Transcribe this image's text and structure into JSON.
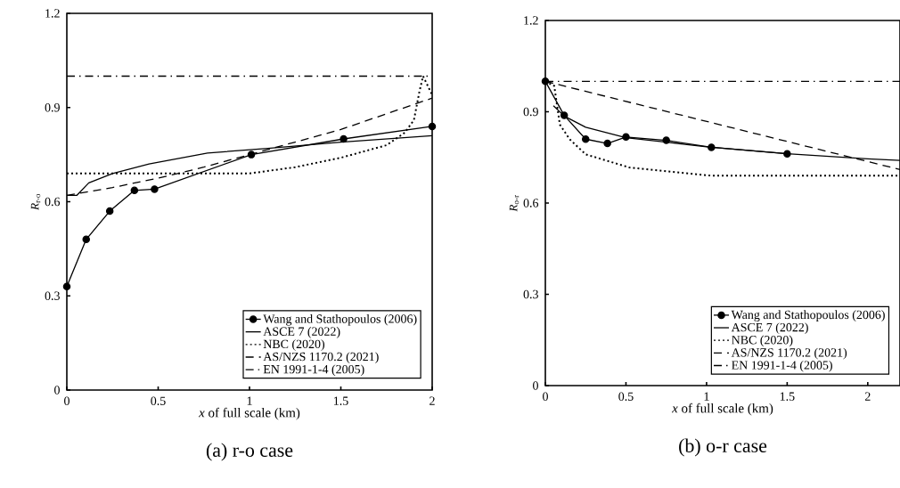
{
  "chart_data": [
    {
      "type": "line",
      "title": "(a) r-o case",
      "xlabel": "*x* of full scale (km)",
      "ylabel": "*R*$_{r-o}$",
      "xlim": [
        0,
        2
      ],
      "ylim": [
        0,
        1.2
      ],
      "xticks": [
        0,
        0.5,
        1,
        1.5,
        2
      ],
      "yticks": [
        0,
        0.3,
        0.6,
        0.9,
        1.2
      ],
      "grid": false,
      "legend": "bottom right",
      "series": [
        {
          "name": "Wang and Stathopoulos (2006)",
          "color": "#000000",
          "marker": "circle",
          "line_style": "solid",
          "x": [
            0,
            0.106,
            0.235,
            0.37,
            0.48,
            1.01,
            1.515,
            2.0
          ],
          "values": [
            0.33,
            0.48,
            0.57,
            0.636,
            0.64,
            0.75,
            0.8,
            0.84
          ]
        },
        {
          "name": "ASCE 7 (2022)",
          "color": "#000000",
          "marker": "none",
          "line_style": "solid",
          "x": [
            0,
            0.054,
            0.12,
            0.25,
            0.45,
            0.77,
            1.1,
            1.5,
            2.0
          ],
          "values": [
            0.62,
            0.62,
            0.66,
            0.69,
            0.72,
            0.755,
            0.77,
            0.79,
            0.81
          ]
        },
        {
          "name": "NBC (2020)",
          "color": "#000000",
          "marker": "none",
          "line_style": "dotted",
          "x": [
            0,
            1.0,
            1.25,
            1.5,
            1.75,
            1.85,
            1.9,
            1.93,
            1.95,
            2.0
          ],
          "values": [
            0.69,
            0.69,
            0.71,
            0.74,
            0.78,
            0.82,
            0.86,
            0.95,
            1.0,
            0.94
          ]
        },
        {
          "name": "AS/NZS 1170.2  (2021)",
          "color": "#000000",
          "marker": "none",
          "line_style": "dashed",
          "x": [
            0,
            0.25,
            0.5,
            0.75,
            1.0,
            1.25,
            1.5,
            1.75,
            2.0
          ],
          "values": [
            0.62,
            0.645,
            0.675,
            0.71,
            0.75,
            0.79,
            0.83,
            0.88,
            0.93
          ]
        },
        {
          "name": "EN 1991-1-4 (2005)",
          "color": "#000000",
          "marker": "none",
          "line_style": "dashdot",
          "x": [
            0,
            2.0
          ],
          "values": [
            1.0,
            1.0
          ]
        }
      ]
    },
    {
      "type": "line",
      "title": "(b) o-r case",
      "xlabel": "*x* of full scale (km)",
      "ylabel": "*R*$_{o-r}$",
      "xlim": [
        0,
        2.2
      ],
      "ylim": [
        0,
        1.2
      ],
      "xticks": [
        0,
        0.5,
        1,
        1.5,
        2
      ],
      "yticks": [
        0,
        0.3,
        0.6,
        0.9,
        1.2
      ],
      "grid": false,
      "legend": "bottom right",
      "series": [
        {
          "name": "Wang and Stathopoulos (2006)",
          "color": "#000000",
          "marker": "circle",
          "line_style": "solid",
          "x": [
            0,
            0.117,
            0.25,
            0.385,
            0.5,
            0.75,
            1.03,
            1.5
          ],
          "values": [
            1.0,
            0.888,
            0.81,
            0.796,
            0.817,
            0.806,
            0.783,
            0.762
          ]
        },
        {
          "name": "ASCE 7 (2022)",
          "color": "#000000",
          "marker": "none",
          "line_style": "solid",
          "x": [
            0.05,
            0.12,
            0.25,
            0.5,
            0.75,
            1.0,
            1.5,
            2.0,
            2.2
          ],
          "values": [
            0.92,
            0.885,
            0.849,
            0.815,
            0.8,
            0.785,
            0.762,
            0.745,
            0.74
          ]
        },
        {
          "name": "NBC  (2020)",
          "color": "#000000",
          "marker": "none",
          "line_style": "dotted",
          "x": [
            0,
            0.055,
            0.09,
            0.15,
            0.25,
            0.52,
            0.89,
            1.03,
            2.2
          ],
          "values": [
            1.0,
            0.985,
            0.858,
            0.81,
            0.76,
            0.717,
            0.697,
            0.69,
            0.69
          ]
        },
        {
          "name": "AS/NZS 1170.2  (2021)",
          "color": "#000000",
          "marker": "none",
          "line_style": "dashed",
          "x": [
            0,
            2.2
          ],
          "values": [
            1.0,
            0.71
          ]
        },
        {
          "name": "EN 1991-1-4 (2005)",
          "color": "#000000",
          "marker": "none",
          "line_style": "dashdot",
          "x": [
            0,
            2.2
          ],
          "values": [
            1.0,
            1.0
          ]
        }
      ]
    }
  ]
}
